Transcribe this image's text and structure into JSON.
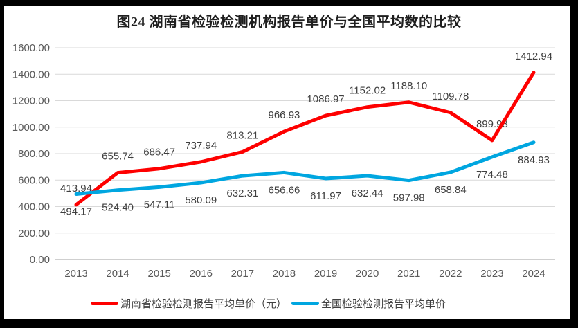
{
  "title": "图24 湖南省检验检测机构报告单价与全国平均数的比较",
  "chart_data": {
    "type": "line",
    "title": "图24 湖南省检验检测机构报告单价与全国平均数的比较",
    "x": [
      "2013",
      "2014",
      "2015",
      "2016",
      "2017",
      "2018",
      "2019",
      "2020",
      "2021",
      "2022",
      "2023",
      "2024"
    ],
    "series": [
      {
        "name": "湖南省检验检测报告平均单价（元）",
        "color": "#FE0000",
        "label_position": "above",
        "values": [
          413.94,
          655.74,
          686.47,
          737.94,
          813.21,
          966.93,
          1086.97,
          1152.02,
          1188.1,
          1109.78,
          899.93,
          1412.94
        ]
      },
      {
        "name": "全国检验检测报告平均单价",
        "color": "#00A6E0",
        "label_position": "below",
        "values": [
          494.17,
          524.4,
          547.11,
          580.09,
          632.31,
          656.66,
          611.97,
          632.44,
          597.98,
          658.84,
          774.48,
          884.93
        ]
      }
    ],
    "xlabel": "",
    "ylabel": "",
    "ylim": [
      0,
      1600
    ],
    "ytick_step": 200,
    "yticks": [
      "0.00",
      "200.00",
      "400.00",
      "600.00",
      "800.00",
      "1000.00",
      "1200.00",
      "1400.00",
      "1600.00"
    ],
    "grid": true,
    "legend_position": "bottom",
    "colors": {
      "gridline": "#D9D9D9",
      "axis_line": "#BFBFBF",
      "axis_label": "#595959",
      "data_label": "#3F3F3F",
      "page_border": "#000000",
      "background": "#FFFFFF"
    }
  },
  "legend": {
    "items": [
      {
        "label": "湖南省检验检测报告平均单价（元）",
        "color": "#FE0000"
      },
      {
        "label": "全国检验检测报告平均单价",
        "color": "#00A6E0"
      }
    ]
  }
}
